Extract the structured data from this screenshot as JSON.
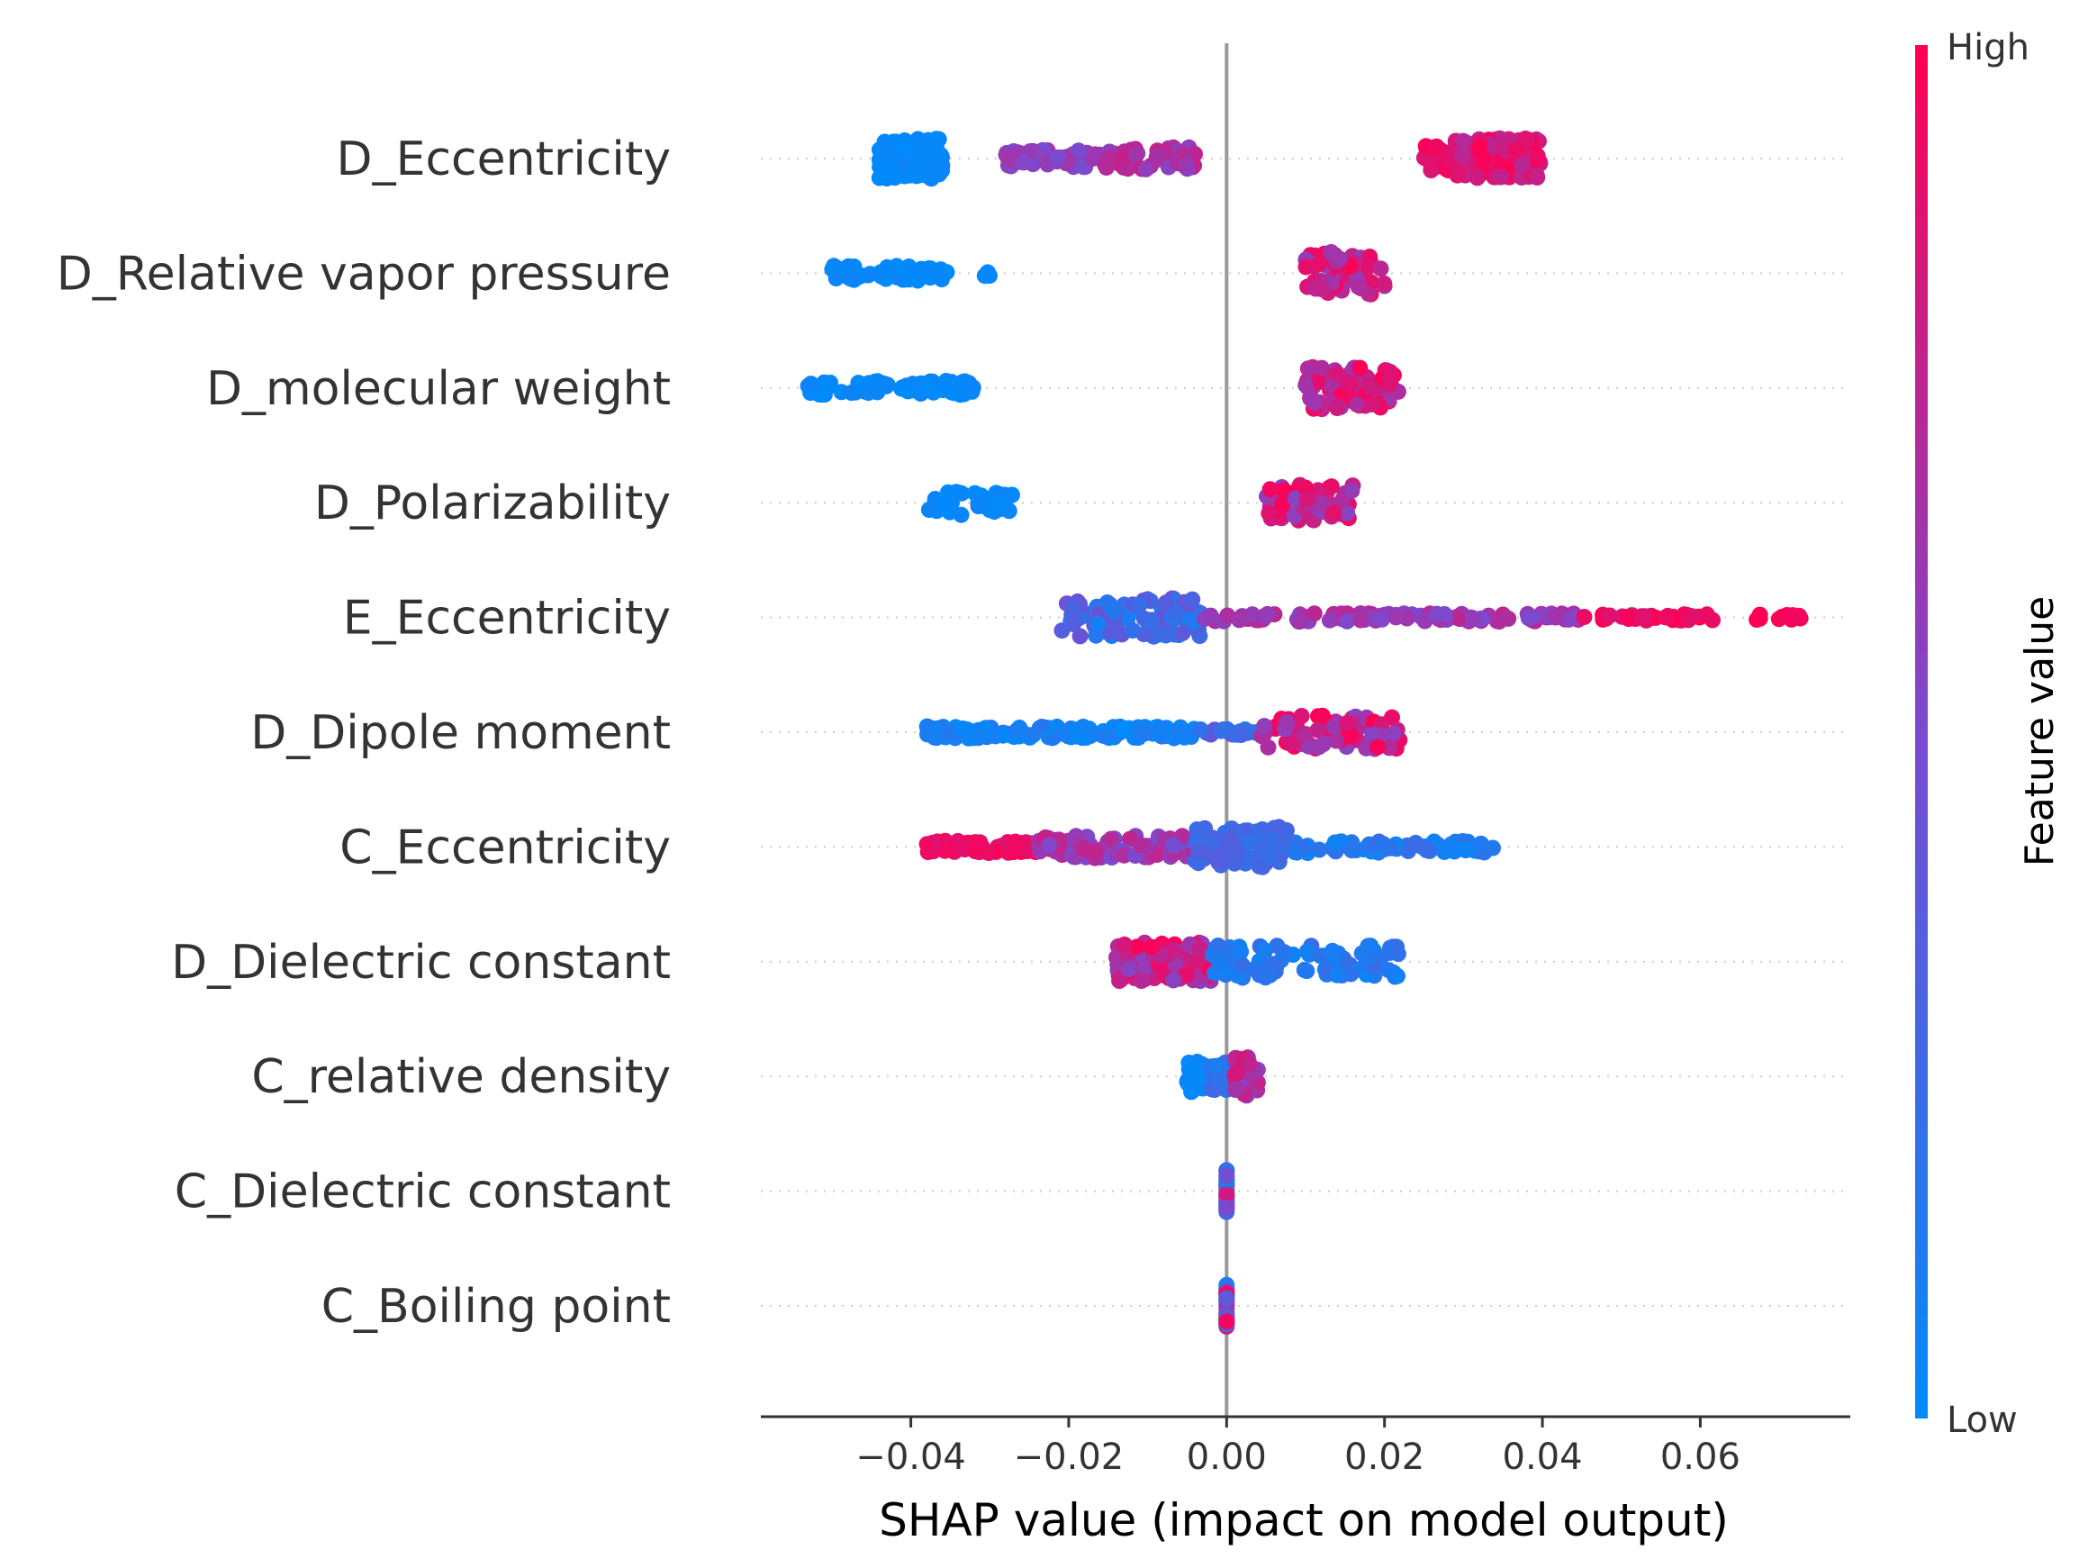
{
  "chart_data": {
    "type": "beeswarm",
    "xlabel": "SHAP value (impact on model output)",
    "xlim": [
      -0.059,
      0.079
    ],
    "xticks": [
      -0.04,
      -0.02,
      0.0,
      0.02,
      0.04,
      0.06
    ],
    "xtick_labels": [
      "−0.04",
      "−0.02",
      "0.00",
      "0.02",
      "0.04",
      "0.06"
    ],
    "zero_line": 0.0,
    "grid": "dotted horizontal row guides",
    "features": [
      "D_Eccentricity",
      "D_Relative vapor pressure",
      "D_molecular weight",
      "D_Polarizability",
      "E_Eccentricity",
      "D_Dipole moment",
      "C_Eccentricity",
      "D_Dielectric constant",
      "C_relative density",
      "C_Dielectric constant",
      "C_Boiling point"
    ],
    "clusters": [
      [
        {
          "x": [
            -0.044,
            -0.036
          ],
          "v": [
            0.0,
            0.05
          ],
          "n": 120,
          "spread": 0.4
        },
        {
          "x": [
            -0.028,
            -0.017
          ],
          "v": [
            0.45,
            0.65
          ],
          "n": 40,
          "spread": 0.18
        },
        {
          "x": [
            -0.017,
            -0.004
          ],
          "v": [
            0.55,
            0.8
          ],
          "n": 50,
          "spread": 0.22
        },
        {
          "x": [
            0.025,
            0.029
          ],
          "v": [
            0.85,
            1.0
          ],
          "n": 40,
          "spread": 0.25
        },
        {
          "x": [
            0.029,
            0.04
          ],
          "v": [
            0.7,
            1.0
          ],
          "n": 140,
          "spread": 0.4
        }
      ],
      [
        {
          "x": [
            -0.05,
            -0.035
          ],
          "v": [
            0.0,
            0.06
          ],
          "n": 45,
          "spread": 0.15
        },
        {
          "x": [
            -0.031,
            -0.03
          ],
          "v": [
            0.0,
            0.03
          ],
          "n": 3,
          "spread": 0.05
        },
        {
          "x": [
            0.01,
            0.02
          ],
          "v": [
            0.6,
            1.0
          ],
          "n": 70,
          "spread": 0.42
        }
      ],
      [
        {
          "x": [
            -0.054,
            -0.032
          ],
          "v": [
            0.0,
            0.06
          ],
          "n": 70,
          "spread": 0.14
        },
        {
          "x": [
            0.01,
            0.022
          ],
          "v": [
            0.6,
            1.0
          ],
          "n": 80,
          "spread": 0.42
        }
      ],
      [
        {
          "x": [
            -0.038,
            -0.026
          ],
          "v": [
            0.0,
            0.06
          ],
          "n": 35,
          "spread": 0.25
        },
        {
          "x": [
            0.005,
            0.016
          ],
          "v": [
            0.55,
            1.0
          ],
          "n": 60,
          "spread": 0.35
        }
      ],
      [
        {
          "x": [
            -0.021,
            -0.003
          ],
          "v": [
            0.05,
            0.45
          ],
          "n": 90,
          "spread": 0.38
        },
        {
          "x": [
            -0.003,
            0.045
          ],
          "v": [
            0.5,
            0.75
          ],
          "n": 120,
          "spread": 0.08
        },
        {
          "x": [
            0.045,
            0.062
          ],
          "v": [
            0.85,
            1.0
          ],
          "n": 40,
          "spread": 0.06
        },
        {
          "x": [
            0.067,
            0.073
          ],
          "v": [
            0.95,
            1.0
          ],
          "n": 10,
          "spread": 0.06
        }
      ],
      [
        {
          "x": [
            -0.038,
            -0.004
          ],
          "v": [
            0.0,
            0.15
          ],
          "n": 140,
          "spread": 0.12
        },
        {
          "x": [
            -0.004,
            0.005
          ],
          "v": [
            0.15,
            0.4
          ],
          "n": 20,
          "spread": 0.06
        },
        {
          "x": [
            0.004,
            0.022
          ],
          "v": [
            0.55,
            1.0
          ],
          "n": 70,
          "spread": 0.35
        }
      ],
      [
        {
          "x": [
            -0.038,
            -0.02
          ],
          "v": [
            0.85,
            1.0
          ],
          "n": 90,
          "spread": 0.12
        },
        {
          "x": [
            -0.024,
            -0.004
          ],
          "v": [
            0.45,
            0.8
          ],
          "n": 80,
          "spread": 0.22
        },
        {
          "x": [
            -0.004,
            0.008
          ],
          "v": [
            0.2,
            0.35
          ],
          "n": 90,
          "spread": 0.4
        },
        {
          "x": [
            0.008,
            0.034
          ],
          "v": [
            0.05,
            0.25
          ],
          "n": 70,
          "spread": 0.12
        }
      ],
      [
        {
          "x": [
            -0.014,
            -0.002
          ],
          "v": [
            0.55,
            1.0
          ],
          "n": 110,
          "spread": 0.38
        },
        {
          "x": [
            -0.002,
            0.022
          ],
          "v": [
            0.05,
            0.25
          ],
          "n": 90,
          "spread": 0.32
        }
      ],
      [
        {
          "x": [
            -0.005,
            -0.003
          ],
          "v": [
            0.0,
            0.06
          ],
          "n": 30,
          "spread": 0.32
        },
        {
          "x": [
            -0.002,
            0.0
          ],
          "v": [
            0.1,
            0.3
          ],
          "n": 20,
          "spread": 0.28
        },
        {
          "x": [
            0.001,
            0.004
          ],
          "v": [
            0.55,
            0.85
          ],
          "n": 40,
          "spread": 0.38
        }
      ],
      [
        {
          "x": [
            0.0,
            0.0
          ],
          "v": [
            0.0,
            1.0
          ],
          "n": 40,
          "spread": 0.42
        }
      ],
      [
        {
          "x": [
            0.0,
            0.0
          ],
          "v": [
            0.0,
            1.0
          ],
          "n": 40,
          "spread": 0.42
        }
      ]
    ]
  },
  "colorbar": {
    "label": "Feature value",
    "high_label": "High",
    "low_label": "Low",
    "low_color": "#008bfb",
    "mid_color": "#7a4ad0",
    "high_color": "#ff0052"
  },
  "colors": {
    "zero_line": "#999999",
    "text": "#333333",
    "grid": "#cccccc"
  }
}
